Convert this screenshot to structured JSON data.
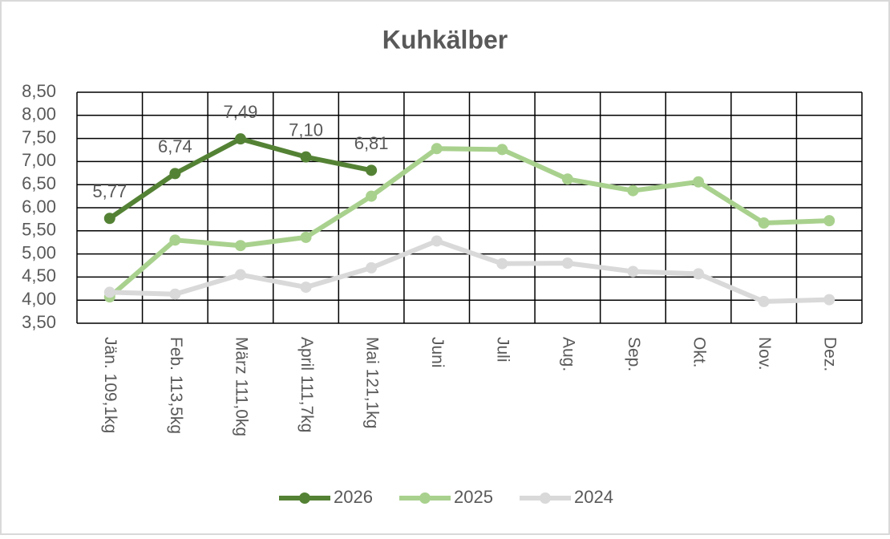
{
  "chart_data": {
    "type": "line",
    "title": "Kuhkälber",
    "categories": [
      "Jän.  109,1kg",
      "Feb.  113,5kg",
      "März 111,0kg",
      "April  111,7kg",
      "Mai  121,1kg",
      "Juni",
      "Juli",
      "Aug.",
      "Sep.",
      "Okt.",
      "Nov.",
      "Dez."
    ],
    "series": [
      {
        "name": "2026",
        "color": "#548235",
        "values": [
          5.77,
          6.74,
          7.49,
          7.1,
          6.81,
          null,
          null,
          null,
          null,
          null,
          null,
          null
        ],
        "value_labels": [
          "5,77",
          "6,74",
          "7,49",
          "7,10",
          "6,81",
          null,
          null,
          null,
          null,
          null,
          null,
          null
        ]
      },
      {
        "name": "2025",
        "color": "#a9d18e",
        "values": [
          4.07,
          5.3,
          5.18,
          5.36,
          6.25,
          7.28,
          7.26,
          6.62,
          6.37,
          6.56,
          5.67,
          5.72
        ]
      },
      {
        "name": "2024",
        "color": "#d9d9d9",
        "values": [
          4.17,
          4.13,
          4.55,
          4.28,
          4.7,
          5.28,
          4.79,
          4.8,
          4.62,
          4.57,
          3.97,
          4.01
        ]
      }
    ],
    "ylim": [
      3.5,
      8.5
    ],
    "yticks": [
      {
        "value": 3.5,
        "label": "3,50"
      },
      {
        "value": 4.0,
        "label": "4,00"
      },
      {
        "value": 4.5,
        "label": "4,50"
      },
      {
        "value": 5.0,
        "label": "5,00"
      },
      {
        "value": 5.5,
        "label": "5,50"
      },
      {
        "value": 6.0,
        "label": "6,00"
      },
      {
        "value": 6.5,
        "label": "6,50"
      },
      {
        "value": 7.0,
        "label": "7,00"
      },
      {
        "value": 7.5,
        "label": "7,50"
      },
      {
        "value": 8.0,
        "label": "8,00"
      },
      {
        "value": 8.5,
        "label": "8,50"
      }
    ],
    "grid": true,
    "legend": "bottom"
  }
}
